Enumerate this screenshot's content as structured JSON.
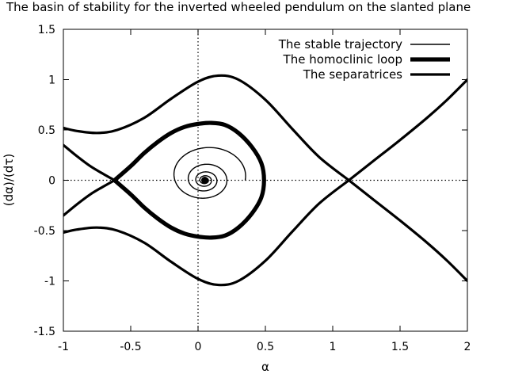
{
  "chart_data": {
    "type": "line",
    "title": "The basin of stability for the inverted wheeled pendulum  on the slanted plane",
    "xlabel": "α",
    "ylabel": "(dα)/(dτ)",
    "xlim": [
      -1,
      2
    ],
    "ylim": [
      -1.5,
      1.5
    ],
    "xticks": [
      -1,
      -0.5,
      0,
      0.5,
      1,
      1.5,
      2
    ],
    "xtick_labels": [
      "-1",
      "-0.5",
      "0",
      "0.5",
      "1",
      "1.5",
      "2"
    ],
    "yticks": [
      -1.5,
      -1,
      -0.5,
      0,
      0.5,
      1,
      1.5
    ],
    "ytick_labels": [
      "-1.5",
      "-1",
      "-0.5",
      "0",
      "0.5",
      "1",
      "1.5"
    ],
    "zero_lines": {
      "x": 0,
      "y": 0,
      "style": "dotted"
    },
    "legend_position": "top-right",
    "legend": [
      {
        "label": "The stable trajectory",
        "weight": "thin"
      },
      {
        "label": "The homoclinic loop",
        "weight": "thick"
      },
      {
        "label": "The separatrices",
        "weight": "medium"
      }
    ],
    "series": [
      {
        "name": "The stable trajectory",
        "weight": "thin",
        "spiral": {
          "center": [
            0.05,
            0
          ],
          "start": [
            0.35,
            0
          ],
          "turns": 6.5,
          "y_scale": 1.0
        }
      },
      {
        "name": "The homoclinic loop",
        "weight": "thick",
        "x": [
          -0.62,
          -0.5,
          -0.4,
          -0.3,
          -0.2,
          -0.1,
          0.0,
          0.1,
          0.2,
          0.3,
          0.4,
          0.47,
          0.49,
          0.47,
          0.4,
          0.3,
          0.2,
          0.1,
          0.0,
          -0.1,
          -0.2,
          -0.3,
          -0.4,
          -0.5,
          -0.62
        ],
        "y": [
          0.0,
          0.14,
          0.27,
          0.38,
          0.47,
          0.53,
          0.56,
          0.57,
          0.55,
          0.47,
          0.33,
          0.17,
          0.0,
          -0.17,
          -0.33,
          -0.47,
          -0.55,
          -0.57,
          -0.56,
          -0.53,
          -0.47,
          -0.38,
          -0.27,
          -0.14,
          0.0
        ]
      },
      {
        "name": "The separatrices",
        "weight": "medium",
        "branches": [
          {
            "x": [
              -1.0,
              -0.9,
              -0.8,
              -0.7,
              -0.62
            ],
            "y": [
              0.35,
              0.24,
              0.14,
              0.06,
              0.0
            ]
          },
          {
            "x": [
              -1.0,
              -0.9,
              -0.8,
              -0.7,
              -0.62
            ],
            "y": [
              -0.35,
              -0.24,
              -0.14,
              -0.06,
              0.0
            ]
          },
          {
            "x": [
              -1.0,
              -0.9,
              -0.75,
              -0.6,
              -0.4,
              -0.2,
              0.0,
              0.15,
              0.3,
              0.5,
              0.7,
              0.9,
              1.12
            ],
            "y": [
              0.52,
              0.49,
              0.47,
              0.5,
              0.62,
              0.81,
              0.98,
              1.04,
              1.0,
              0.8,
              0.51,
              0.23,
              0.0
            ]
          },
          {
            "x": [
              -1.0,
              -0.9,
              -0.75,
              -0.6,
              -0.4,
              -0.2,
              0.0,
              0.15,
              0.3,
              0.5,
              0.7,
              0.9,
              1.12
            ],
            "y": [
              -0.52,
              -0.49,
              -0.47,
              -0.5,
              -0.62,
              -0.81,
              -0.98,
              -1.04,
              -1.0,
              -0.8,
              -0.51,
              -0.23,
              0.0
            ]
          },
          {
            "x": [
              1.12,
              1.3,
              1.5,
              1.7,
              1.85,
              2.0
            ],
            "y": [
              0.0,
              0.19,
              0.4,
              0.62,
              0.8,
              1.0
            ]
          },
          {
            "x": [
              1.12,
              1.3,
              1.5,
              1.7,
              1.85,
              2.0
            ],
            "y": [
              0.0,
              -0.19,
              -0.4,
              -0.62,
              -0.8,
              -1.0
            ]
          }
        ]
      }
    ]
  }
}
